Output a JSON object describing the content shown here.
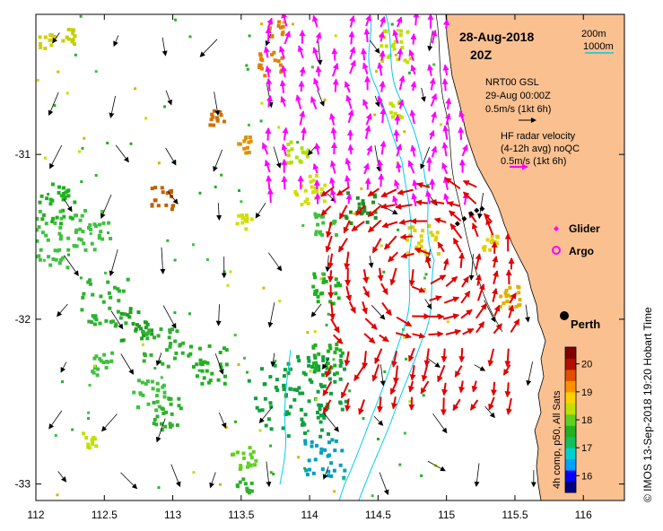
{
  "title": {
    "date": "28-Aug-2018",
    "time": "20Z"
  },
  "scale_legend": {
    "items": [
      {
        "label": "200m",
        "color": "#000000"
      },
      {
        "label": "1000m",
        "color": "#00ddee"
      }
    ]
  },
  "arrow_legend": {
    "model": {
      "line1": "NRT00 GSL",
      "line2": "29-Aug 00:00Z",
      "line3": "0.5m/s (1kt 6h)",
      "color": "#000000"
    },
    "radar": {
      "line1": "HF radar velocity",
      "line2": "(4-12h avg) noQC",
      "line3": "0.5m/s (1kt 6h)",
      "color": "#ff00ff"
    }
  },
  "markers": [
    {
      "label": "Glider",
      "symbol": "diamond",
      "color": "#ff00ff"
    },
    {
      "label": "Argo",
      "symbol": "circle",
      "color": "#ff00ff"
    }
  ],
  "city": {
    "label": "Perth",
    "lon": 115.86,
    "lat": -31.95
  },
  "colorbar": {
    "label": "4h comp, p50, All Sats",
    "ticks": [
      16,
      17,
      18,
      19,
      20
    ],
    "min": 15.4,
    "max": 20.6,
    "colors": [
      "#000080",
      "#0000ff",
      "#00a0ff",
      "#00d0d0",
      "#10c060",
      "#20b020",
      "#60d020",
      "#c0e000",
      "#ffd000",
      "#ff9000",
      "#e05000",
      "#b01000",
      "#800000"
    ]
  },
  "credit": "© IMOS 13-Sep-2018 19:20 Hobart Time",
  "chart_data": {
    "type": "map",
    "xlim": [
      112,
      116.3
    ],
    "ylim": [
      -33.1,
      -30.15
    ],
    "x_ticks": [
      112,
      112.5,
      113,
      113.5,
      114,
      114.5,
      115,
      115.5,
      116
    ],
    "x_tick_labels": [
      "112",
      "112.5",
      "113",
      "113.5",
      "114",
      "114.5",
      "115",
      "115.5",
      "116"
    ],
    "y_ticks": [
      -31,
      -32,
      -33
    ],
    "y_tick_labels": [
      "-31",
      "-32",
      "-33"
    ],
    "land_color": "#fac090",
    "radar_arrows_magenta_region": "north of -31.4, east of 113.7",
    "radar_arrows_red_region": "south of -31.2, 114.1 to 115.4",
    "glider_track": [
      [
        115.08,
        -31.42
      ],
      [
        115.13,
        -31.39
      ],
      [
        115.18,
        -31.36
      ],
      [
        115.22,
        -31.34
      ],
      [
        115.26,
        -31.33
      ]
    ]
  }
}
